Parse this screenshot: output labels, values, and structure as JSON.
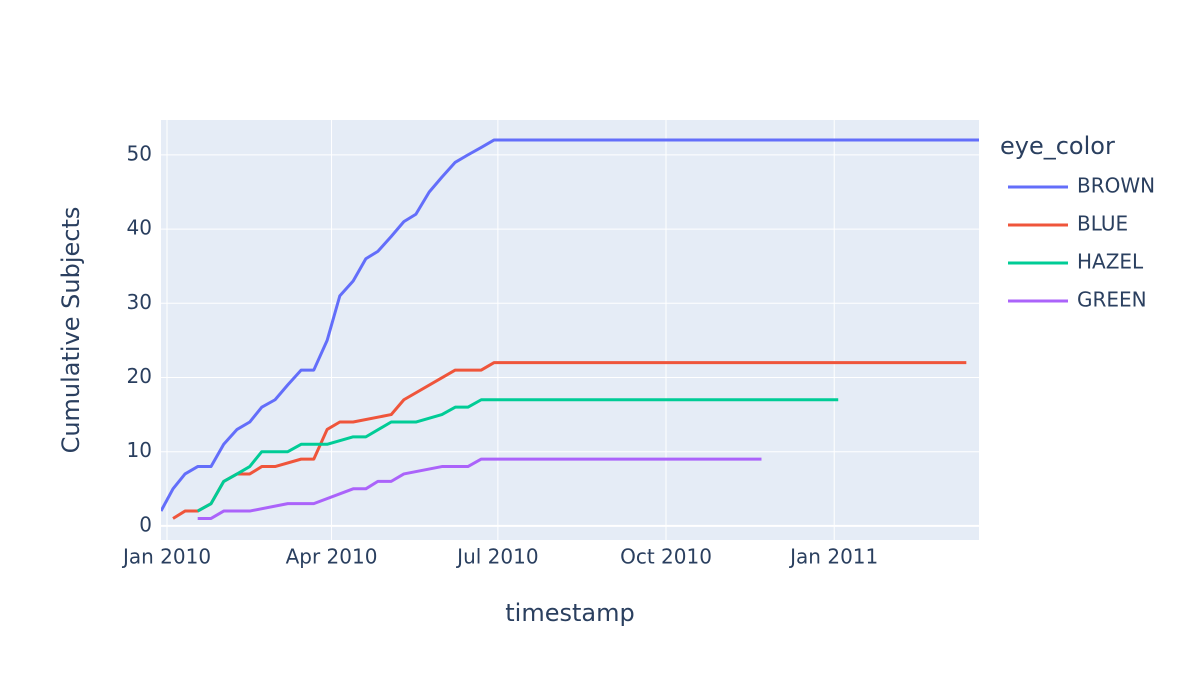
{
  "chart_data": {
    "type": "line",
    "x_label": "timestamp",
    "y_label": "Cumulative Subjects",
    "legend_title": "eye_color",
    "xlim": [
      2009.991,
      2011.217
    ],
    "ylim": [
      -1.9,
      54.7
    ],
    "xticks": [
      {
        "value": 2010,
        "label": "Jan 2010"
      },
      {
        "value": 2010.2466,
        "label": "Apr 2010"
      },
      {
        "value": 2010.4959,
        "label": "Jul 2010"
      },
      {
        "value": 2010.7479,
        "label": "Oct 2010"
      },
      {
        "value": 2011,
        "label": "Jan 2011"
      }
    ],
    "yticks": [
      0,
      10,
      20,
      30,
      40,
      50
    ],
    "grid": true,
    "legend_position": "right",
    "series": [
      {
        "name": "BROWN",
        "color": "#636efa",
        "x": [
          2009.991,
          2010.009,
          2010.027,
          2010.046,
          2010.066,
          2010.085,
          2010.105,
          2010.124,
          2010.142,
          2010.162,
          2010.181,
          2010.201,
          2010.22,
          2010.24,
          2010.259,
          2010.279,
          2010.298,
          2010.316,
          2010.336,
          2010.355,
          2010.373,
          2010.393,
          2010.412,
          2010.432,
          2010.451,
          2010.471,
          2010.49,
          2011.217
        ],
        "values": [
          2,
          5,
          7,
          8,
          8,
          11,
          13,
          14,
          16,
          17,
          19,
          21,
          21,
          25,
          31,
          33,
          36,
          37,
          39,
          41,
          42,
          45,
          47,
          49,
          50,
          51,
          52,
          52
        ]
      },
      {
        "name": "BLUE",
        "color": "#EF553B",
        "x": [
          2010.009,
          2010.027,
          2010.046,
          2010.066,
          2010.085,
          2010.105,
          2010.124,
          2010.142,
          2010.162,
          2010.201,
          2010.22,
          2010.24,
          2010.259,
          2010.279,
          2010.336,
          2010.355,
          2010.432,
          2010.471,
          2010.49,
          2011.198
        ],
        "values": [
          1,
          2,
          2,
          3,
          6,
          7,
          7,
          8,
          8,
          9,
          9,
          13,
          14,
          14,
          15,
          17,
          21,
          21,
          22,
          22
        ]
      },
      {
        "name": "HAZEL",
        "color": "#00cc96",
        "x": [
          2010.046,
          2010.066,
          2010.085,
          2010.105,
          2010.124,
          2010.142,
          2010.181,
          2010.201,
          2010.24,
          2010.279,
          2010.298,
          2010.336,
          2010.373,
          2010.412,
          2010.432,
          2010.451,
          2010.471,
          2011.006
        ],
        "values": [
          2,
          3,
          6,
          7,
          8,
          10,
          10,
          11,
          11,
          12,
          12,
          14,
          14,
          15,
          16,
          16,
          17,
          17
        ]
      },
      {
        "name": "GREEN",
        "color": "#ab63fa",
        "x": [
          2010.046,
          2010.066,
          2010.085,
          2010.124,
          2010.181,
          2010.22,
          2010.279,
          2010.298,
          2010.316,
          2010.336,
          2010.355,
          2010.412,
          2010.451,
          2010.471,
          2010.891
        ],
        "values": [
          1,
          1,
          2,
          2,
          3,
          3,
          5,
          5,
          6,
          6,
          7,
          8,
          8,
          9,
          9
        ]
      }
    ]
  }
}
